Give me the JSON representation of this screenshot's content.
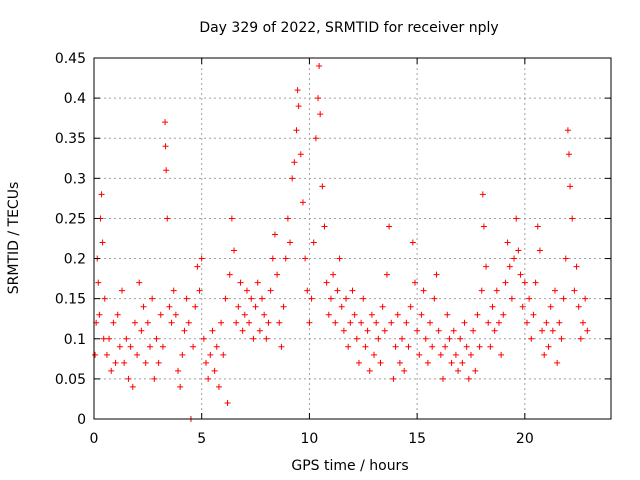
{
  "chart_data": {
    "type": "scatter",
    "title": "Day 329 of 2022, SRMTID for receiver nply",
    "xlabel": "GPS time / hours",
    "ylabel": "SRMTID / TECUs",
    "xlim": [
      0,
      24
    ],
    "ylim": [
      0,
      0.45
    ],
    "x_ticks": [
      0,
      5,
      10,
      15,
      20
    ],
    "x_tick_labels": [
      "0",
      "5",
      "10",
      "15",
      "20"
    ],
    "y_ticks": [
      0,
      0.05,
      0.1,
      0.15,
      0.2,
      0.25,
      0.3,
      0.35,
      0.4,
      0.45
    ],
    "y_tick_labels": [
      "0",
      "0.05",
      "0.1",
      "0.15",
      "0.2",
      "0.25",
      "0.3",
      "0.35",
      "0.4",
      "0.45"
    ],
    "grid": true,
    "marker": "+",
    "color": "#ff0000",
    "series": [
      {
        "name": "SRMTID",
        "points": [
          [
            0.05,
            0.08
          ],
          [
            0.1,
            0.12
          ],
          [
            0.15,
            0.2
          ],
          [
            0.2,
            0.17
          ],
          [
            0.25,
            0.13
          ],
          [
            0.3,
            0.25
          ],
          [
            0.35,
            0.28
          ],
          [
            0.4,
            0.22
          ],
          [
            0.45,
            0.1
          ],
          [
            0.5,
            0.15
          ],
          [
            0.6,
            0.08
          ],
          [
            0.7,
            0.1
          ],
          [
            0.8,
            0.06
          ],
          [
            0.9,
            0.12
          ],
          [
            1.0,
            0.07
          ],
          [
            1.1,
            0.13
          ],
          [
            1.2,
            0.09
          ],
          [
            1.3,
            0.16
          ],
          [
            1.4,
            0.07
          ],
          [
            1.5,
            0.1
          ],
          [
            1.6,
            0.05
          ],
          [
            1.7,
            0.09
          ],
          [
            1.8,
            0.04
          ],
          [
            1.9,
            0.12
          ],
          [
            2.0,
            0.08
          ],
          [
            2.1,
            0.17
          ],
          [
            2.2,
            0.11
          ],
          [
            2.3,
            0.14
          ],
          [
            2.4,
            0.07
          ],
          [
            2.5,
            0.12
          ],
          [
            2.6,
            0.09
          ],
          [
            2.7,
            0.15
          ],
          [
            2.8,
            0.05
          ],
          [
            2.9,
            0.1
          ],
          [
            3.0,
            0.07
          ],
          [
            3.1,
            0.13
          ],
          [
            3.2,
            0.09
          ],
          [
            3.3,
            0.37
          ],
          [
            3.32,
            0.34
          ],
          [
            3.35,
            0.31
          ],
          [
            3.4,
            0.25
          ],
          [
            3.5,
            0.14
          ],
          [
            3.6,
            0.12
          ],
          [
            3.7,
            0.16
          ],
          [
            3.8,
            0.13
          ],
          [
            3.9,
            0.06
          ],
          [
            4.0,
            0.04
          ],
          [
            4.1,
            0.08
          ],
          [
            4.2,
            0.11
          ],
          [
            4.3,
            0.15
          ],
          [
            4.4,
            0.12
          ],
          [
            4.5,
            0.0
          ],
          [
            4.6,
            0.09
          ],
          [
            4.7,
            0.14
          ],
          [
            4.8,
            0.19
          ],
          [
            4.9,
            0.16
          ],
          [
            5.0,
            0.2
          ],
          [
            5.1,
            0.1
          ],
          [
            5.2,
            0.07
          ],
          [
            5.3,
            0.05
          ],
          [
            5.4,
            0.08
          ],
          [
            5.5,
            0.11
          ],
          [
            5.6,
            0.06
          ],
          [
            5.7,
            0.09
          ],
          [
            5.8,
            0.04
          ],
          [
            5.9,
            0.12
          ],
          [
            6.0,
            0.08
          ],
          [
            6.1,
            0.15
          ],
          [
            6.2,
            0.02
          ],
          [
            6.3,
            0.18
          ],
          [
            6.4,
            0.25
          ],
          [
            6.5,
            0.21
          ],
          [
            6.6,
            0.12
          ],
          [
            6.7,
            0.14
          ],
          [
            6.8,
            0.17
          ],
          [
            6.9,
            0.11
          ],
          [
            7.0,
            0.13
          ],
          [
            7.1,
            0.16
          ],
          [
            7.2,
            0.12
          ],
          [
            7.3,
            0.15
          ],
          [
            7.4,
            0.1
          ],
          [
            7.5,
            0.14
          ],
          [
            7.6,
            0.17
          ],
          [
            7.7,
            0.11
          ],
          [
            7.8,
            0.15
          ],
          [
            7.9,
            0.13
          ],
          [
            8.0,
            0.1
          ],
          [
            8.1,
            0.12
          ],
          [
            8.2,
            0.16
          ],
          [
            8.3,
            0.2
          ],
          [
            8.4,
            0.23
          ],
          [
            8.5,
            0.18
          ],
          [
            8.6,
            0.12
          ],
          [
            8.7,
            0.09
          ],
          [
            8.8,
            0.14
          ],
          [
            8.9,
            0.2
          ],
          [
            9.0,
            0.25
          ],
          [
            9.1,
            0.22
          ],
          [
            9.2,
            0.3
          ],
          [
            9.3,
            0.32
          ],
          [
            9.4,
            0.36
          ],
          [
            9.45,
            0.41
          ],
          [
            9.5,
            0.39
          ],
          [
            9.6,
            0.33
          ],
          [
            9.7,
            0.27
          ],
          [
            9.8,
            0.2
          ],
          [
            9.9,
            0.16
          ],
          [
            10.0,
            0.12
          ],
          [
            10.1,
            0.15
          ],
          [
            10.2,
            0.22
          ],
          [
            10.3,
            0.35
          ],
          [
            10.4,
            0.4
          ],
          [
            10.45,
            0.44
          ],
          [
            10.5,
            0.38
          ],
          [
            10.6,
            0.29
          ],
          [
            10.7,
            0.24
          ],
          [
            10.8,
            0.17
          ],
          [
            10.9,
            0.13
          ],
          [
            11.0,
            0.15
          ],
          [
            11.1,
            0.18
          ],
          [
            11.2,
            0.12
          ],
          [
            11.3,
            0.16
          ],
          [
            11.4,
            0.2
          ],
          [
            11.5,
            0.14
          ],
          [
            11.6,
            0.11
          ],
          [
            11.7,
            0.15
          ],
          [
            11.8,
            0.09
          ],
          [
            11.9,
            0.12
          ],
          [
            12.0,
            0.16
          ],
          [
            12.1,
            0.13
          ],
          [
            12.2,
            0.1
          ],
          [
            12.3,
            0.07
          ],
          [
            12.4,
            0.12
          ],
          [
            12.5,
            0.15
          ],
          [
            12.6,
            0.09
          ],
          [
            12.7,
            0.11
          ],
          [
            12.8,
            0.06
          ],
          [
            12.9,
            0.13
          ],
          [
            13.0,
            0.08
          ],
          [
            13.1,
            0.12
          ],
          [
            13.2,
            0.1
          ],
          [
            13.3,
            0.07
          ],
          [
            13.4,
            0.14
          ],
          [
            13.5,
            0.11
          ],
          [
            13.6,
            0.18
          ],
          [
            13.7,
            0.24
          ],
          [
            13.8,
            0.12
          ],
          [
            13.9,
            0.05
          ],
          [
            14.0,
            0.09
          ],
          [
            14.1,
            0.13
          ],
          [
            14.2,
            0.07
          ],
          [
            14.3,
            0.1
          ],
          [
            14.4,
            0.06
          ],
          [
            14.5,
            0.12
          ],
          [
            14.6,
            0.09
          ],
          [
            14.7,
            0.14
          ],
          [
            14.8,
            0.22
          ],
          [
            14.9,
            0.17
          ],
          [
            15.0,
            0.11
          ],
          [
            15.1,
            0.08
          ],
          [
            15.2,
            0.13
          ],
          [
            15.3,
            0.16
          ],
          [
            15.4,
            0.1
          ],
          [
            15.5,
            0.07
          ],
          [
            15.6,
            0.12
          ],
          [
            15.7,
            0.09
          ],
          [
            15.8,
            0.15
          ],
          [
            15.9,
            0.18
          ],
          [
            16.0,
            0.11
          ],
          [
            16.1,
            0.08
          ],
          [
            16.2,
            0.05
          ],
          [
            16.3,
            0.09
          ],
          [
            16.4,
            0.13
          ],
          [
            16.5,
            0.1
          ],
          [
            16.6,
            0.07
          ],
          [
            16.7,
            0.11
          ],
          [
            16.8,
            0.08
          ],
          [
            16.9,
            0.06
          ],
          [
            17.0,
            0.1
          ],
          [
            17.1,
            0.07
          ],
          [
            17.2,
            0.12
          ],
          [
            17.3,
            0.09
          ],
          [
            17.4,
            0.05
          ],
          [
            17.5,
            0.08
          ],
          [
            17.6,
            0.11
          ],
          [
            17.7,
            0.06
          ],
          [
            17.8,
            0.13
          ],
          [
            17.9,
            0.09
          ],
          [
            18.0,
            0.16
          ],
          [
            18.05,
            0.28
          ],
          [
            18.1,
            0.24
          ],
          [
            18.2,
            0.19
          ],
          [
            18.3,
            0.12
          ],
          [
            18.4,
            0.09
          ],
          [
            18.5,
            0.14
          ],
          [
            18.6,
            0.11
          ],
          [
            18.7,
            0.16
          ],
          [
            18.8,
            0.12
          ],
          [
            18.9,
            0.08
          ],
          [
            19.0,
            0.13
          ],
          [
            19.1,
            0.17
          ],
          [
            19.2,
            0.22
          ],
          [
            19.3,
            0.19
          ],
          [
            19.4,
            0.15
          ],
          [
            19.5,
            0.2
          ],
          [
            19.6,
            0.25
          ],
          [
            19.7,
            0.21
          ],
          [
            19.8,
            0.18
          ],
          [
            19.9,
            0.14
          ],
          [
            20.0,
            0.17
          ],
          [
            20.1,
            0.12
          ],
          [
            20.2,
            0.15
          ],
          [
            20.3,
            0.1
          ],
          [
            20.4,
            0.13
          ],
          [
            20.5,
            0.17
          ],
          [
            20.6,
            0.24
          ],
          [
            20.7,
            0.21
          ],
          [
            20.8,
            0.11
          ],
          [
            20.9,
            0.08
          ],
          [
            21.0,
            0.12
          ],
          [
            21.1,
            0.09
          ],
          [
            21.2,
            0.14
          ],
          [
            21.3,
            0.11
          ],
          [
            21.4,
            0.16
          ],
          [
            21.5,
            0.07
          ],
          [
            21.6,
            0.12
          ],
          [
            21.7,
            0.1
          ],
          [
            21.8,
            0.15
          ],
          [
            21.9,
            0.2
          ],
          [
            22.0,
            0.36
          ],
          [
            22.05,
            0.33
          ],
          [
            22.1,
            0.29
          ],
          [
            22.2,
            0.25
          ],
          [
            22.3,
            0.16
          ],
          [
            22.4,
            0.19
          ],
          [
            22.5,
            0.14
          ],
          [
            22.6,
            0.1
          ],
          [
            22.7,
            0.12
          ],
          [
            22.8,
            0.15
          ],
          [
            22.9,
            0.11
          ]
        ]
      }
    ]
  }
}
